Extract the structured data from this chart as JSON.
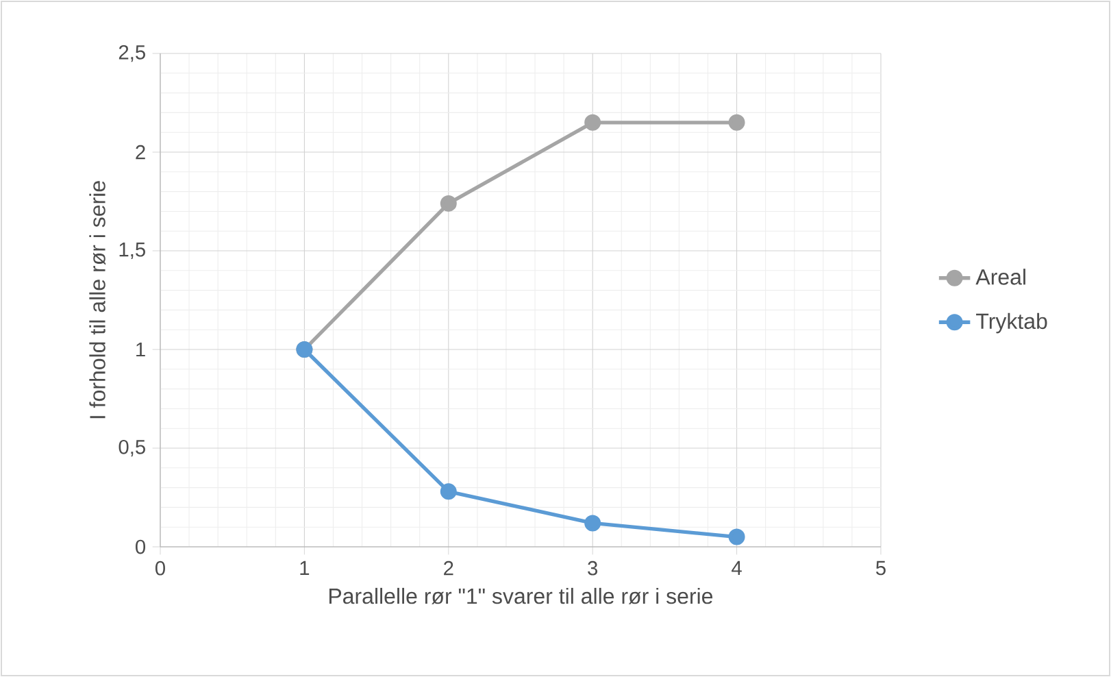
{
  "chart_data": {
    "type": "line",
    "xlabel": "Parallelle rør \"1\" svarer til alle rør i serie",
    "ylabel": "I forhold til alle rør i serie",
    "x": [
      1,
      2,
      3,
      4
    ],
    "series": [
      {
        "name": "Areal",
        "color": "#a5a5a5",
        "values": [
          1,
          1.74,
          2.15,
          2.15
        ]
      },
      {
        "name": "Tryktab",
        "color": "#5b9bd5",
        "values": [
          1,
          0.28,
          0.12,
          0.05
        ]
      }
    ],
    "xlim": [
      0,
      5
    ],
    "xticks": [
      0,
      1,
      2,
      3,
      4,
      5
    ],
    "ylim": [
      0,
      2.5
    ],
    "yticks": [
      0,
      {
        "value": 0.5,
        "label": "0,5"
      },
      1,
      {
        "value": 1.5,
        "label": "1,5"
      },
      2,
      {
        "value": 2.5,
        "label": "2,5"
      }
    ],
    "grid": true,
    "legend": "right",
    "marker": "circle",
    "line_style": "solid"
  }
}
